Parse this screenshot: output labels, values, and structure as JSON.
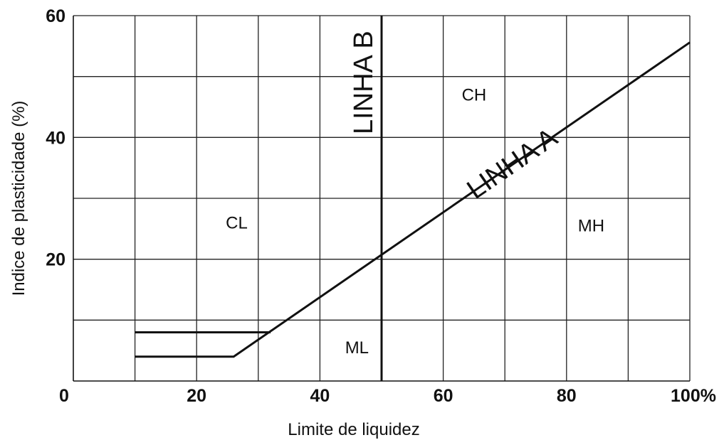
{
  "chart_data": {
    "type": "line",
    "title": "",
    "xlabel": "Limite de liquidez",
    "ylabel": "Indice de plasticidade (%)",
    "xlim": [
      0,
      100
    ],
    "ylim": [
      0,
      60
    ],
    "grid": true,
    "x_ticks": [
      {
        "value": 0,
        "label": "0"
      },
      {
        "value": 20,
        "label": "20"
      },
      {
        "value": 40,
        "label": "40"
      },
      {
        "value": 60,
        "label": "60"
      },
      {
        "value": 80,
        "label": "80"
      },
      {
        "value": 100,
        "label": "100%"
      }
    ],
    "y_ticks": [
      {
        "value": 20,
        "label": "20"
      },
      {
        "value": 40,
        "label": "40"
      },
      {
        "value": 60,
        "label": "60"
      }
    ],
    "x_grid": [
      10,
      20,
      30,
      40,
      50,
      60,
      70,
      80,
      90,
      100
    ],
    "y_grid": [
      10,
      20,
      30,
      40,
      50,
      60
    ],
    "series": [
      {
        "name": "LINHA A",
        "points": [
          [
            10,
            4
          ],
          [
            26,
            4
          ],
          [
            100,
            55.6
          ]
        ]
      },
      {
        "name": "LINHA B",
        "points": [
          [
            50,
            0
          ],
          [
            50,
            60
          ]
        ]
      },
      {
        "name": "",
        "points": [
          [
            10,
            8
          ],
          [
            32,
            8
          ]
        ]
      }
    ],
    "line_labels": [
      {
        "text": "LINHA A",
        "x": 72,
        "y": 34.5
      },
      {
        "text": "LINHA B",
        "x": 48.5,
        "y": 49
      }
    ],
    "regions": [
      {
        "label": "CL",
        "x": 26.5,
        "y": 26
      },
      {
        "label": "CH",
        "x": 65,
        "y": 47
      },
      {
        "label": "MH",
        "x": 84,
        "y": 25.5
      },
      {
        "label": "ML",
        "x": 46,
        "y": 5.5
      }
    ]
  }
}
